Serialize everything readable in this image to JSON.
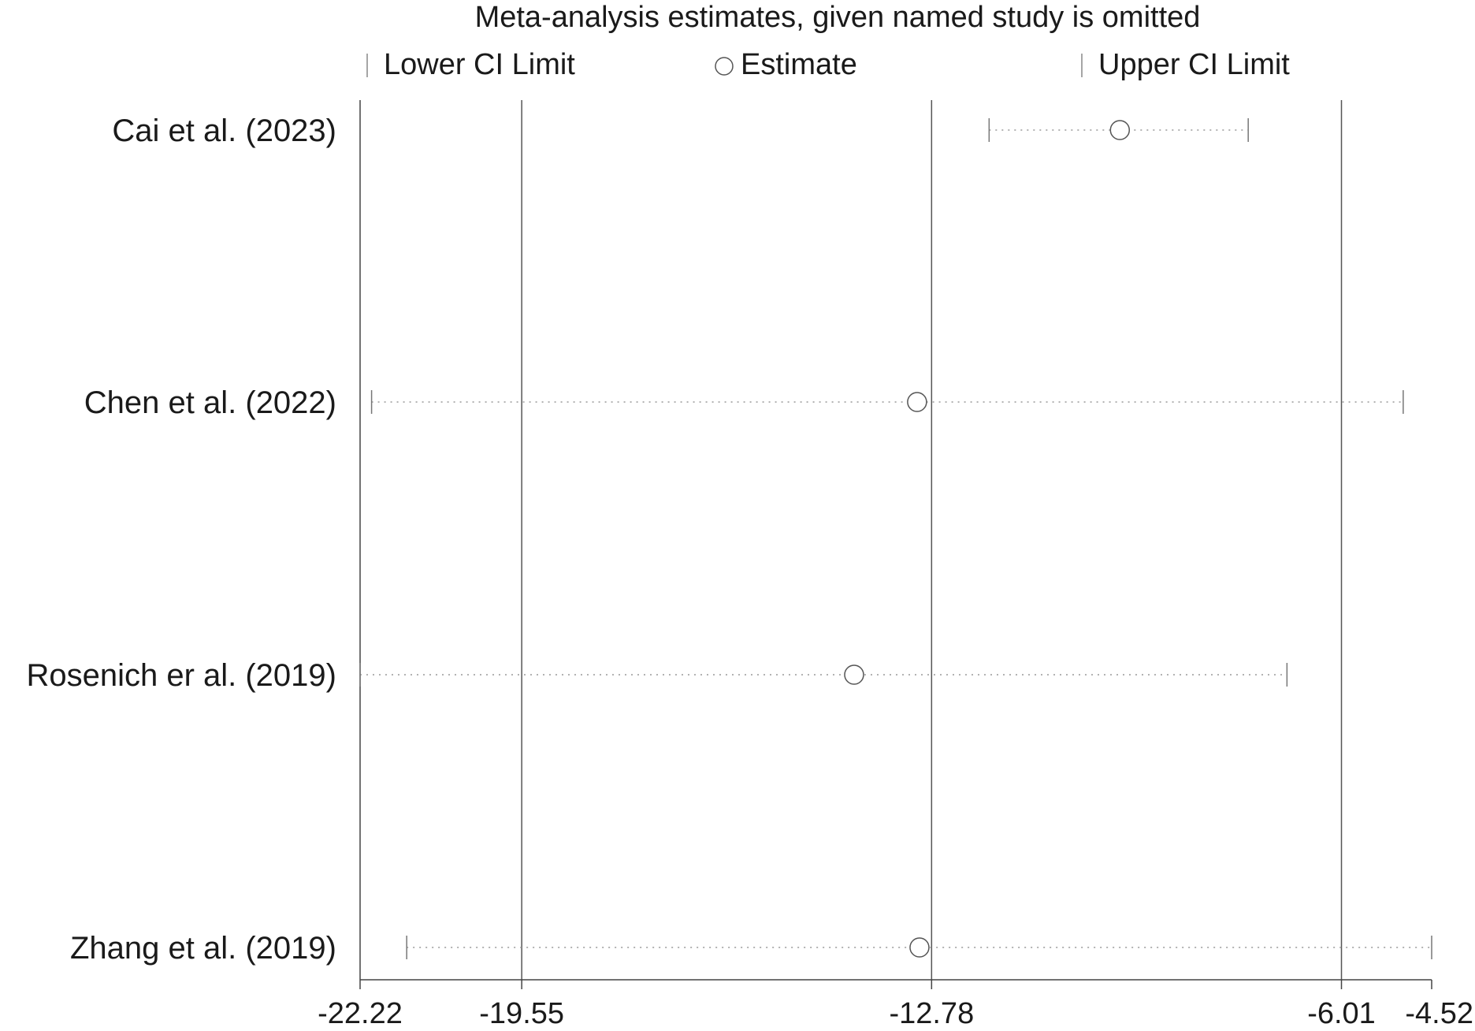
{
  "chart_data": {
    "type": "scatter",
    "title": "Meta-analysis estimates, given named study is omitted",
    "legend": {
      "placement": "top",
      "items": [
        {
          "symbol": "tick",
          "label": "Lower CI Limit"
        },
        {
          "symbol": "circle",
          "label": "Estimate"
        },
        {
          "symbol": "tick",
          "label": "Upper CI Limit"
        }
      ]
    },
    "x_ticks": [
      -22.22,
      -19.55,
      -12.78,
      -6.01,
      -4.52
    ],
    "x_tick_labels": [
      "-22.22",
      "-19.55",
      "-12.78",
      "-6.01",
      "-4.52"
    ],
    "reference_lines": [
      -19.55,
      -12.78,
      -6.01
    ],
    "xlim": [
      -22.22,
      -4.52
    ],
    "studies": [
      {
        "name": "Cai et al. (2023)",
        "lower": -11.83,
        "estimate": -9.67,
        "upper": -7.55
      },
      {
        "name": "Chen et al. (2022)",
        "lower": -22.03,
        "estimate": -13.02,
        "upper": -4.99
      },
      {
        "name": "Rosenich er al. (2019)",
        "lower": -22.22,
        "estimate": -14.06,
        "upper": -6.91
      },
      {
        "name": "Zhang et al. (2019)",
        "lower": -21.45,
        "estimate": -12.98,
        "upper": -4.52
      }
    ]
  }
}
